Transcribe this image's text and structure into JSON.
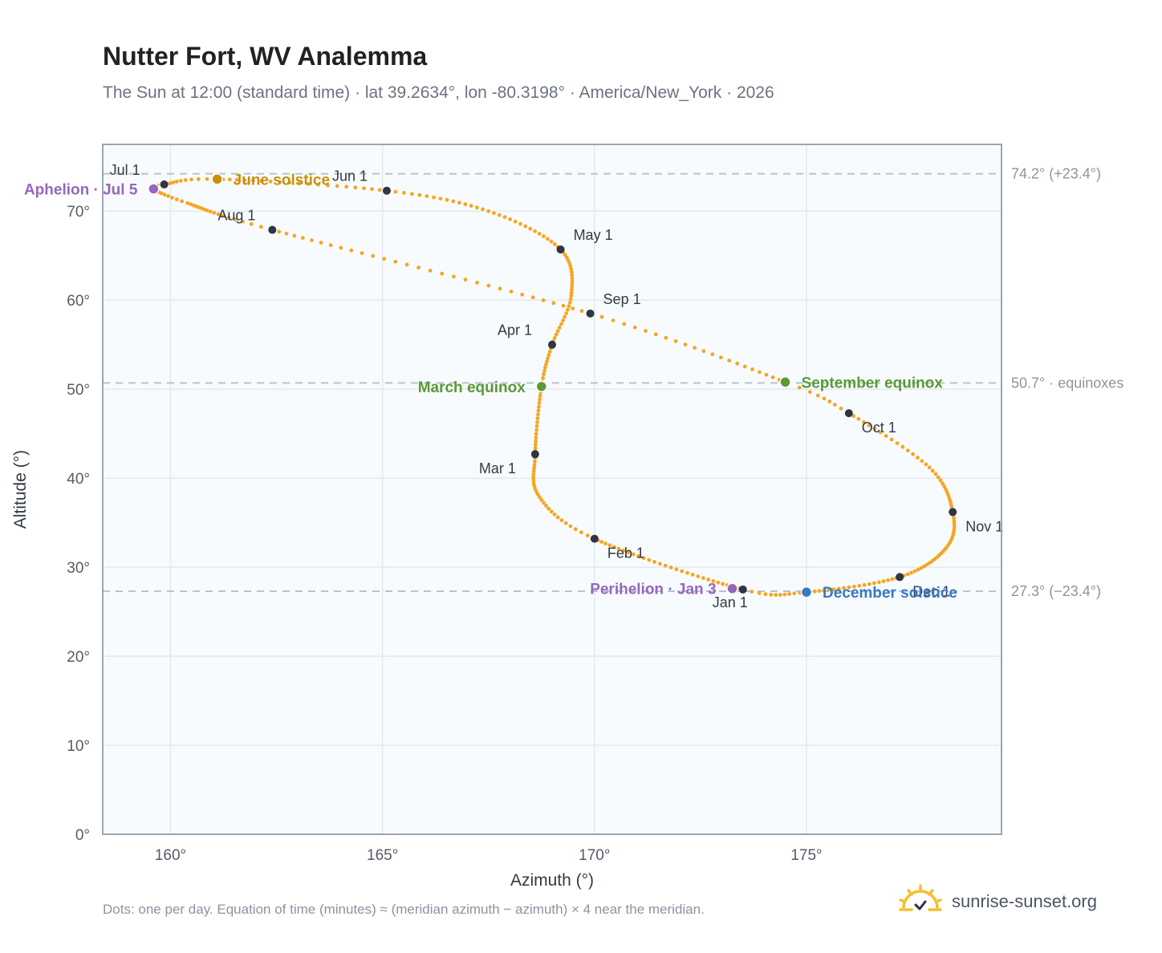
{
  "header": {
    "title": "Nutter Fort, WV Analemma",
    "subtitle": "The Sun at 12:00 (standard time) · lat 39.2634°, lon -80.3198° · America/New_York · 2026"
  },
  "footer": {
    "note": "Dots: one per day. Equation of time (minutes) ≈ (meridian azimuth − azimuth) × 4 near the meridian.",
    "brand": "sunrise-sunset.org",
    "brand_icon": "sun-icon"
  },
  "colors": {
    "curve": "#f5a623",
    "month_marker": "#2f3542",
    "june_solstice": "#c8900a",
    "december_solstice": "#3a78c3",
    "equinox": "#5a9a34",
    "apsis": "#9467bd",
    "plot_bg": "#f8fbfe",
    "grid": "#e3e8ef",
    "frame": "#9aa5b5",
    "ref_line": "#b8c3cf"
  },
  "chart_data": {
    "type": "scatter",
    "title": "Nutter Fort, WV Analemma",
    "xlabel": "Azimuth (°)",
    "ylabel": "Altitude (°)",
    "xlim": [
      158.4,
      179.6
    ],
    "ylim": [
      0,
      77.5
    ],
    "x_ticks": [
      160,
      165,
      170,
      175
    ],
    "x_tick_labels": [
      "160°",
      "165°",
      "170°",
      "175°"
    ],
    "y_ticks": [
      0,
      10,
      20,
      30,
      40,
      50,
      60,
      70
    ],
    "y_tick_labels": [
      "0°",
      "10°",
      "20°",
      "30°",
      "40°",
      "50°",
      "60°",
      "70°"
    ],
    "grid": true,
    "reference_lines": [
      {
        "y": 74.2,
        "label": "74.2° (+23.4°)"
      },
      {
        "y": 50.7,
        "label": "50.7° · equinoxes"
      },
      {
        "y": 27.3,
        "label": "27.3° (−23.4°)"
      }
    ],
    "path": [
      {
        "doy": 1,
        "az": 173.5,
        "alt": 27.5
      },
      {
        "doy": 32,
        "az": 170.0,
        "alt": 33.2
      },
      {
        "doy": 46,
        "az": 168.7,
        "alt": 37.9
      },
      {
        "doy": 60,
        "az": 168.6,
        "alt": 42.7
      },
      {
        "doy": 79,
        "az": 168.75,
        "alt": 50.3
      },
      {
        "doy": 91,
        "az": 169.0,
        "alt": 55.0
      },
      {
        "doy": 105,
        "az": 169.45,
        "alt": 60.5
      },
      {
        "doy": 121,
        "az": 169.2,
        "alt": 65.7
      },
      {
        "doy": 137,
        "az": 167.5,
        "alt": 70.0
      },
      {
        "doy": 152,
        "az": 165.1,
        "alt": 72.3
      },
      {
        "doy": 172,
        "az": 161.1,
        "alt": 73.6
      },
      {
        "doy": 182,
        "az": 159.85,
        "alt": 73.0
      },
      {
        "doy": 186,
        "az": 159.6,
        "alt": 72.5
      },
      {
        "doy": 196,
        "az": 160.4,
        "alt": 70.9
      },
      {
        "doy": 213,
        "az": 162.4,
        "alt": 67.9
      },
      {
        "doy": 244,
        "az": 169.9,
        "alt": 58.5
      },
      {
        "doy": 266,
        "az": 174.5,
        "alt": 50.8
      },
      {
        "doy": 274,
        "az": 176.0,
        "alt": 47.3
      },
      {
        "doy": 290,
        "az": 177.9,
        "alt": 41.2
      },
      {
        "doy": 305,
        "az": 178.45,
        "alt": 36.2
      },
      {
        "doy": 318,
        "az": 178.3,
        "alt": 32.2
      },
      {
        "doy": 335,
        "az": 177.2,
        "alt": 28.9
      },
      {
        "doy": 355,
        "az": 175.0,
        "alt": 27.2
      },
      {
        "doy": 366,
        "az": 173.5,
        "alt": 27.5
      }
    ],
    "month_markers": [
      {
        "label": "Jan 1",
        "az": 173.5,
        "alt": 27.5,
        "pos": "below"
      },
      {
        "label": "Feb 1",
        "az": 170.0,
        "alt": 33.2,
        "pos": "below-right"
      },
      {
        "label": "Mar 1",
        "az": 168.6,
        "alt": 42.7,
        "pos": "below-left"
      },
      {
        "label": "Apr 1",
        "az": 169.0,
        "alt": 55.0,
        "pos": "above-left"
      },
      {
        "label": "May 1",
        "az": 169.2,
        "alt": 65.7,
        "pos": "above-right"
      },
      {
        "label": "Jun 1",
        "az": 165.1,
        "alt": 72.3,
        "pos": "above-left"
      },
      {
        "label": "Jul 1",
        "az": 159.85,
        "alt": 73.0,
        "pos": "above-left"
      },
      {
        "label": "Aug 1",
        "az": 162.4,
        "alt": 67.9,
        "pos": "above-left"
      },
      {
        "label": "Sep 1",
        "az": 169.9,
        "alt": 58.5,
        "pos": "above-right"
      },
      {
        "label": "Oct 1",
        "az": 176.0,
        "alt": 47.3,
        "pos": "below-right"
      },
      {
        "label": "Nov 1",
        "az": 178.45,
        "alt": 36.2,
        "pos": "below-right"
      },
      {
        "label": "Dec 1",
        "az": 177.2,
        "alt": 28.9,
        "pos": "below-right"
      }
    ],
    "events": [
      {
        "label": "June solstice",
        "az": 161.1,
        "alt": 73.6,
        "color": "#c8900a",
        "pos": "right"
      },
      {
        "label": "March equinox",
        "az": 168.75,
        "alt": 50.3,
        "color": "#5a9a34",
        "pos": "left"
      },
      {
        "label": "September equinox",
        "az": 174.5,
        "alt": 50.8,
        "color": "#5a9a34",
        "pos": "right"
      },
      {
        "label": "December solstice",
        "az": 175.0,
        "alt": 27.2,
        "color": "#3a78c3",
        "pos": "right"
      },
      {
        "label": "Aphelion · Jul 5",
        "az": 159.6,
        "alt": 72.5,
        "color": "#9467bd",
        "pos": "left"
      },
      {
        "label": "Perihelion · Jan 3",
        "az": 173.25,
        "alt": 27.6,
        "color": "#9467bd",
        "pos": "left"
      }
    ]
  }
}
